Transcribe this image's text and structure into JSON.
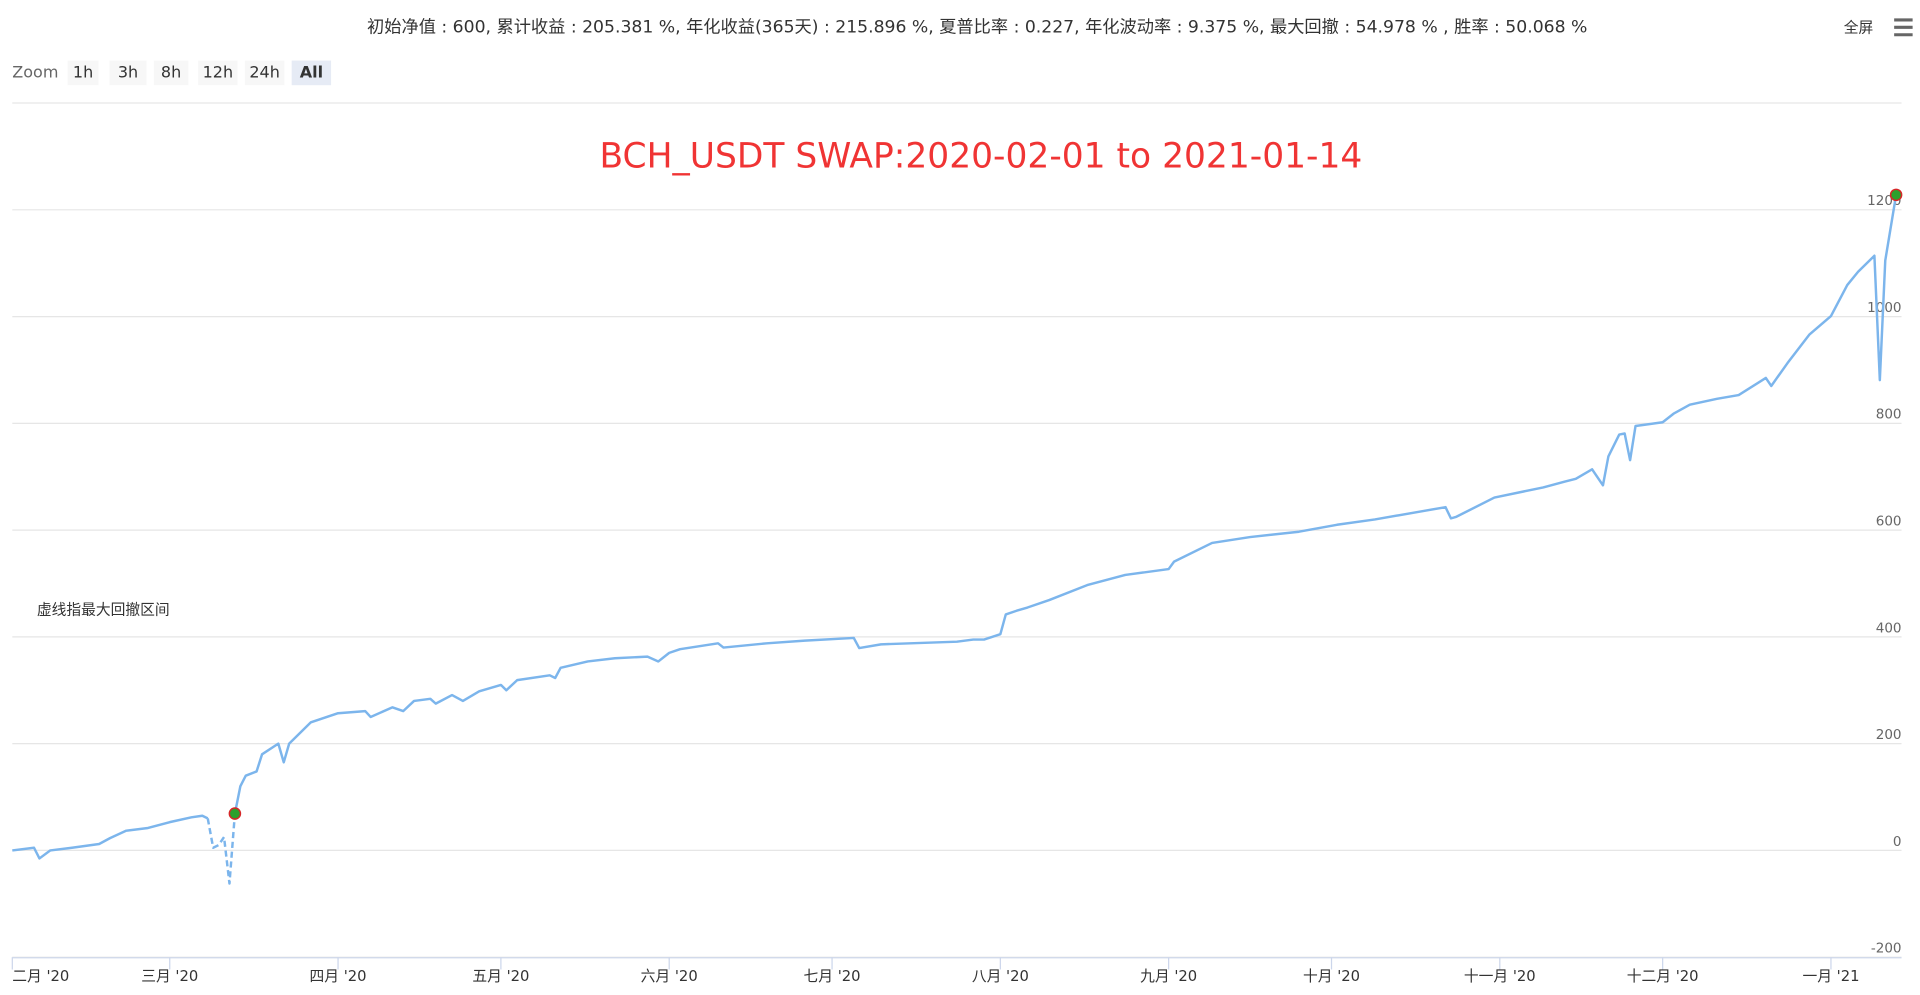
{
  "header": {
    "stats": "初始净值 : 600, 累计收益 : 205.381 %, 年化收益(365天) : 215.896 %, 夏普比率 : 0.227, 年化波动率 : 9.375 %, 最大回撤 : 54.978 % , 胜率 : 50.068 %",
    "fullscreen": "全屏"
  },
  "toolbar": {
    "label": "Zoom",
    "buttons": [
      "1h",
      "3h",
      "8h",
      "12h",
      "24h",
      "All"
    ],
    "selected": "All"
  },
  "chart_data": {
    "type": "line",
    "title": "BCH_USDT SWAP:2020-02-01 to 2021-01-14",
    "annotation": "虚线指最大回撤区间",
    "x": [
      "2020-02-01",
      "2020-02-05",
      "2020-02-06",
      "2020-02-08",
      "2020-02-12",
      "2020-02-17",
      "2020-02-19",
      "2020-02-22",
      "2020-02-26",
      "2020-03-01",
      "2020-03-05",
      "2020-03-07",
      "2020-03-08",
      "2020-03-09",
      "2020-03-10",
      "2020-03-11",
      "2020-03-12",
      "2020-03-13",
      "2020-03-14",
      "2020-03-15",
      "2020-03-17",
      "2020-03-18",
      "2020-03-21",
      "2020-03-22",
      "2020-03-23",
      "2020-03-27",
      "2020-04-01",
      "2020-04-06",
      "2020-04-07",
      "2020-04-11",
      "2020-04-13",
      "2020-04-15",
      "2020-04-18",
      "2020-04-19",
      "2020-04-22",
      "2020-04-24",
      "2020-04-27",
      "2020-05-01",
      "2020-05-02",
      "2020-05-04",
      "2020-05-10",
      "2020-05-11",
      "2020-05-12",
      "2020-05-17",
      "2020-05-22",
      "2020-05-28",
      "2020-05-30",
      "2020-06-01",
      "2020-06-03",
      "2020-06-10",
      "2020-06-11",
      "2020-06-19",
      "2020-06-26",
      "2020-07-05",
      "2020-07-06",
      "2020-07-10",
      "2020-07-24",
      "2020-07-27",
      "2020-07-29",
      "2020-08-01",
      "2020-08-02",
      "2020-08-04",
      "2020-08-06",
      "2020-08-10",
      "2020-08-17",
      "2020-08-24",
      "2020-09-01",
      "2020-09-02",
      "2020-09-09",
      "2020-09-16",
      "2020-09-25",
      "2020-10-02",
      "2020-10-09",
      "2020-10-18",
      "2020-10-22",
      "2020-10-23",
      "2020-10-24",
      "2020-10-31",
      "2020-11-09",
      "2020-11-13",
      "2020-11-15",
      "2020-11-18",
      "2020-11-20",
      "2020-11-21",
      "2020-11-23",
      "2020-11-24",
      "2020-11-25",
      "2020-11-26",
      "2020-12-01",
      "2020-12-03",
      "2020-12-06",
      "2020-12-11",
      "2020-12-15",
      "2020-12-20",
      "2020-12-21",
      "2020-12-24",
      "2020-12-28",
      "2021-01-01",
      "2021-01-04",
      "2021-01-06",
      "2021-01-09",
      "2021-01-10",
      "2021-01-11",
      "2021-01-13"
    ],
    "series": [
      {
        "color": "#7cb5ec",
        "dashed": false,
        "values": [
          0,
          5,
          -15,
          0,
          5,
          12,
          23,
          37,
          42,
          53,
          62,
          65,
          60,
          null,
          null,
          null,
          null,
          69,
          120,
          140,
          148,
          180,
          200,
          165,
          200,
          240,
          257,
          261,
          250,
          268,
          261,
          280,
          284,
          275,
          291,
          280,
          298,
          310,
          300,
          319,
          328,
          323,
          342,
          354,
          360,
          363,
          354,
          370,
          377,
          388,
          380,
          388,
          393,
          398,
          379,
          386,
          391,
          395,
          395,
          405,
          442,
          449,
          455,
          469,
          497,
          516,
          527,
          541,
          576,
          587,
          597,
          610,
          620,
          636,
          643,
          622,
          625,
          661,
          680,
          691,
          696,
          714,
          684,
          738,
          779,
          781,
          731,
          795,
          802,
          818,
          835,
          846,
          853,
          885,
          870,
          913,
          966,
          1001,
          1059,
          1084,
          1114,
          881,
          1105,
          1228
        ]
      },
      {
        "color": "#7cb5ec",
        "dashed": true,
        "values": [
          null,
          null,
          null,
          null,
          null,
          null,
          null,
          null,
          null,
          null,
          null,
          null,
          60,
          5,
          10,
          25,
          -62,
          69,
          null,
          null,
          null,
          null,
          null,
          null,
          null,
          null,
          null,
          null,
          null,
          null,
          null,
          null,
          null,
          null,
          null,
          null,
          null,
          null,
          null,
          null,
          null,
          null,
          null,
          null,
          null,
          null,
          null,
          null,
          null,
          null,
          null,
          null,
          null,
          null,
          null,
          null,
          null,
          null,
          null,
          null,
          null,
          null,
          null,
          null,
          null,
          null,
          null,
          null,
          null,
          null,
          null,
          null,
          null,
          null,
          null,
          null,
          null,
          null,
          null,
          null,
          null,
          null,
          null,
          null,
          null,
          null,
          null,
          null,
          null,
          null,
          null,
          null,
          null,
          null,
          null,
          null,
          null,
          null,
          null,
          null,
          null,
          null,
          null,
          null
        ]
      }
    ],
    "markers": {
      "x": [
        "2020-03-13",
        "2021-01-13"
      ],
      "values": [
        69,
        1228
      ],
      "color": "#2ca02c",
      "stroke": "#d62728"
    },
    "xlim": [
      "2020-02-01",
      "2021-01-14"
    ],
    "xticks": [
      {
        "value": "2020-02-01",
        "label": "二月 '20"
      },
      {
        "value": "2020-03-01",
        "label": "三月 '20"
      },
      {
        "value": "2020-04-01",
        "label": "四月 '20"
      },
      {
        "value": "2020-05-01",
        "label": "五月 '20"
      },
      {
        "value": "2020-06-01",
        "label": "六月 '20"
      },
      {
        "value": "2020-07-01",
        "label": "七月 '20"
      },
      {
        "value": "2020-08-01",
        "label": "八月 '20"
      },
      {
        "value": "2020-09-01",
        "label": "九月 '20"
      },
      {
        "value": "2020-10-01",
        "label": "十月 '20"
      },
      {
        "value": "2020-11-01",
        "label": "十一月 '20"
      },
      {
        "value": "2020-12-01",
        "label": "十二月 '20"
      },
      {
        "value": "2021-01-01",
        "label": "一月 '21"
      }
    ],
    "ylim": [
      -200,
      1400
    ],
    "yticks": [
      -200,
      0,
      200,
      400,
      600,
      800,
      1000,
      1200
    ],
    "grid": true
  }
}
